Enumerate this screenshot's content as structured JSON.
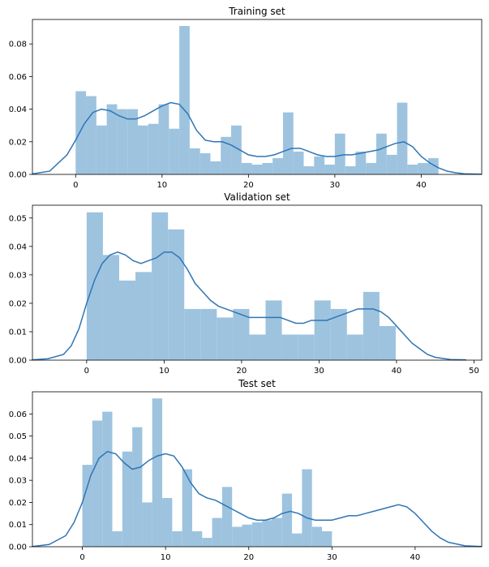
{
  "chart_data": [
    {
      "type": "bar",
      "title": "Training set",
      "xlim": [
        -5,
        47
      ],
      "ylim": [
        0,
        0.095
      ],
      "xticks": [
        0,
        10,
        20,
        30,
        40
      ],
      "xtick_labels": [
        "0",
        "10",
        "20",
        "30",
        "40"
      ],
      "yticks": [
        0,
        0.02,
        0.04,
        0.06,
        0.08
      ],
      "ytick_labels": [
        "0.00",
        "0.02",
        "0.04",
        "0.06",
        "0.08"
      ],
      "bin_start": 0,
      "bin_width": 1.2,
      "values": [
        0.051,
        0.048,
        0.03,
        0.043,
        0.04,
        0.04,
        0.03,
        0.031,
        0.043,
        0.028,
        0.091,
        0.016,
        0.013,
        0.008,
        0.023,
        0.03,
        0.007,
        0.006,
        0.007,
        0.01,
        0.038,
        0.014,
        0.005,
        0.011,
        0.006,
        0.025,
        0.005,
        0.014,
        0.007,
        0.025,
        0.012,
        0.044,
        0.006,
        0.007,
        0.01
      ],
      "kde": {
        "x": [
          -5,
          -3,
          -1,
          0,
          1,
          2,
          3,
          4,
          5,
          6,
          7,
          8,
          9,
          10,
          11,
          12,
          13,
          14,
          15,
          16,
          17,
          18,
          19,
          20,
          21,
          22,
          23,
          24,
          25,
          26,
          27,
          28,
          29,
          30,
          31,
          32,
          33,
          34,
          35,
          36,
          37,
          38,
          39,
          40,
          41,
          42,
          43,
          44,
          45,
          47
        ],
        "y": [
          0.0003,
          0.002,
          0.012,
          0.021,
          0.031,
          0.038,
          0.04,
          0.039,
          0.036,
          0.034,
          0.034,
          0.036,
          0.039,
          0.042,
          0.044,
          0.043,
          0.037,
          0.027,
          0.021,
          0.02,
          0.02,
          0.018,
          0.015,
          0.012,
          0.011,
          0.011,
          0.012,
          0.014,
          0.016,
          0.016,
          0.014,
          0.012,
          0.011,
          0.011,
          0.012,
          0.012,
          0.013,
          0.014,
          0.015,
          0.017,
          0.019,
          0.02,
          0.017,
          0.011,
          0.007,
          0.004,
          0.002,
          0.001,
          0.0004,
          0.0001
        ]
      },
      "bar_color": "#9dc3df",
      "line_color": "#2f75b5"
    },
    {
      "type": "bar",
      "title": "Validation set",
      "xlim": [
        -7,
        51
      ],
      "ylim": [
        0,
        0.0545
      ],
      "xticks": [
        0,
        10,
        20,
        30,
        40,
        50
      ],
      "xtick_labels": [
        "0",
        "10",
        "20",
        "30",
        "40",
        "50"
      ],
      "yticks": [
        0,
        0.01,
        0.02,
        0.03,
        0.04,
        0.05
      ],
      "ytick_labels": [
        "0.00",
        "0.01",
        "0.02",
        "0.03",
        "0.04",
        "0.05"
      ],
      "bin_start": 0,
      "bin_width": 2.1,
      "values": [
        0.052,
        0.037,
        0.028,
        0.031,
        0.052,
        0.046,
        0.018,
        0.018,
        0.015,
        0.018,
        0.009,
        0.021,
        0.009,
        0.009,
        0.021,
        0.018,
        0.009,
        0.024,
        0.012
      ],
      "kde": {
        "x": [
          -7,
          -5,
          -3,
          -2,
          -1,
          0,
          1,
          2,
          3,
          4,
          5,
          6,
          7,
          8,
          9,
          10,
          11,
          12,
          13,
          14,
          15,
          16,
          17,
          18,
          19,
          20,
          21,
          22,
          23,
          24,
          25,
          26,
          27,
          28,
          29,
          30,
          31,
          32,
          33,
          34,
          35,
          36,
          37,
          38,
          39,
          40,
          41,
          42,
          43,
          44,
          45,
          47,
          49
        ],
        "y": [
          0.0001,
          0.0005,
          0.002,
          0.005,
          0.011,
          0.02,
          0.028,
          0.034,
          0.037,
          0.038,
          0.037,
          0.035,
          0.034,
          0.035,
          0.036,
          0.038,
          0.038,
          0.036,
          0.032,
          0.027,
          0.024,
          0.021,
          0.019,
          0.018,
          0.017,
          0.016,
          0.015,
          0.015,
          0.015,
          0.015,
          0.015,
          0.014,
          0.013,
          0.013,
          0.014,
          0.014,
          0.014,
          0.015,
          0.016,
          0.017,
          0.018,
          0.018,
          0.018,
          0.017,
          0.015,
          0.012,
          0.009,
          0.006,
          0.004,
          0.002,
          0.001,
          0.0002,
          0.0001
        ]
      },
      "bar_color": "#9dc3df",
      "line_color": "#2f75b5"
    },
    {
      "type": "bar",
      "title": "Test set",
      "xlim": [
        -6,
        48
      ],
      "ylim": [
        0,
        0.07
      ],
      "xticks": [
        0,
        10,
        20,
        30,
        40
      ],
      "xtick_labels": [
        "0",
        "10",
        "20",
        "30",
        "40"
      ],
      "yticks": [
        0,
        0.01,
        0.02,
        0.03,
        0.04,
        0.05,
        0.06
      ],
      "ytick_labels": [
        "0.00",
        "0.01",
        "0.02",
        "0.03",
        "0.04",
        "0.05",
        "0.06"
      ],
      "bin_start": 0,
      "bin_width": 1.2,
      "values": [
        0.037,
        0.057,
        0.061,
        0.007,
        0.043,
        0.054,
        0.02,
        0.067,
        0.022,
        0.007,
        0.035,
        0.007,
        0.004,
        0.013,
        0.027,
        0.009,
        0.01,
        0.011,
        0.012,
        0.013,
        0.024,
        0.006,
        0.035,
        0.009,
        0.007
      ],
      "kde": {
        "x": [
          -6,
          -4,
          -2,
          -1,
          0,
          1,
          2,
          3,
          4,
          5,
          6,
          7,
          8,
          9,
          10,
          11,
          12,
          13,
          14,
          15,
          16,
          17,
          18,
          19,
          20,
          21,
          22,
          23,
          24,
          25,
          26,
          27,
          28,
          29,
          30,
          31,
          32,
          33,
          34,
          35,
          36,
          37,
          38,
          39,
          40,
          41,
          42,
          43,
          44,
          46,
          48
        ],
        "y": [
          0.0001,
          0.001,
          0.005,
          0.011,
          0.02,
          0.032,
          0.04,
          0.043,
          0.042,
          0.038,
          0.035,
          0.036,
          0.039,
          0.041,
          0.042,
          0.041,
          0.036,
          0.029,
          0.024,
          0.022,
          0.021,
          0.019,
          0.017,
          0.015,
          0.013,
          0.012,
          0.012,
          0.013,
          0.015,
          0.016,
          0.015,
          0.013,
          0.012,
          0.012,
          0.012,
          0.013,
          0.014,
          0.014,
          0.015,
          0.016,
          0.017,
          0.018,
          0.019,
          0.018,
          0.015,
          0.011,
          0.007,
          0.004,
          0.002,
          0.0004,
          0.0001
        ]
      },
      "bar_color": "#9dc3df",
      "line_color": "#2f75b5"
    }
  ]
}
